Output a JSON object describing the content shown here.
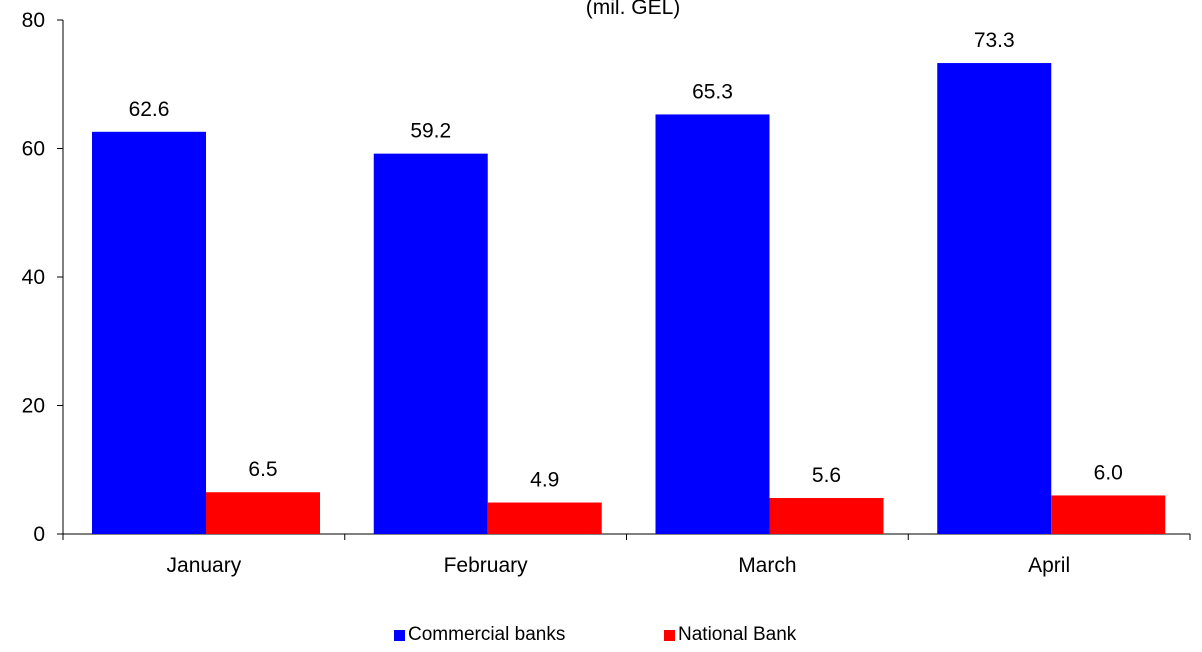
{
  "chart_data": {
    "type": "bar",
    "subtitle": "(mil. GEL)",
    "categories": [
      "January",
      "February",
      "March",
      "April"
    ],
    "series": [
      {
        "name": "Commercial banks",
        "color": "#0000FF",
        "values": [
          62.6,
          59.2,
          65.3,
          73.3
        ],
        "labels": [
          "62.6",
          "59.2",
          "65.3",
          "73.3"
        ]
      },
      {
        "name": "National Bank",
        "color": "#FF0000",
        "values": [
          6.5,
          4.9,
          5.6,
          6.0
        ],
        "labels": [
          "6.5",
          "4.9",
          "5.6",
          "6.0"
        ]
      }
    ],
    "ylim": [
      0,
      80
    ],
    "yticks": [
      "0",
      "20",
      "40",
      "60",
      "80"
    ],
    "grid": false,
    "legend_position": "bottom"
  }
}
